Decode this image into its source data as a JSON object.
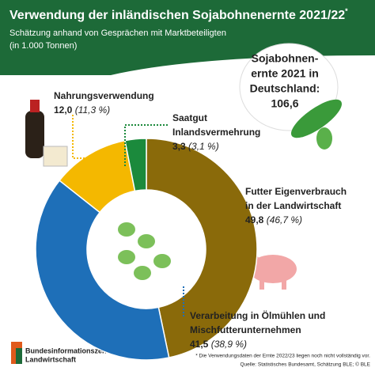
{
  "chart_data": {
    "type": "donut",
    "title": "Verwendung der inländischen Sojabohnenernte 2021/22",
    "title_mark": "*",
    "subtitle": [
      "Schätzung anhand von Gesprächen mit Marktbeteiligten",
      "(in 1.000 Tonnen)"
    ],
    "categories": [
      [
        "Futter Eigenverbrauch",
        "in der Landwirtschaft"
      ],
      [
        "Verarbeitung in Ölmühlen und",
        "Mischfutterunternehmen"
      ],
      [
        "Nahrungsverwendung"
      ],
      [
        "Saatgut",
        "Inlandsvermehrung"
      ]
    ],
    "values": [
      49.8,
      41.5,
      12.0,
      3.3
    ],
    "value_labels": [
      "49,8",
      "41,5",
      "12,0",
      "3,3"
    ],
    "percents": [
      46.7,
      38.9,
      11.3,
      3.1
    ],
    "percent_labels": [
      "(46,7 %)",
      "(38,9 %)",
      "(11,3 %)",
      "(3,1 %)"
    ],
    "colors": [
      "#8a6a0a",
      "#1e6fb8",
      "#f4b800",
      "#1b8a3c"
    ],
    "total": {
      "text": [
        "Sojabohnen-",
        "ernte 2021 in",
        "Deutschland:"
      ],
      "value": 106.6,
      "label": "106,6"
    },
    "footnote": [
      "* Die Verwendungsdaten der Ernte 2022/23 liegen noch nicht vollständig vor.",
      "Quelle: Statistisches Bundesamt, Schätzung BLE; © BLE"
    ],
    "logo": [
      "Bundesinformationszentrum",
      "Landwirtschaft"
    ]
  }
}
